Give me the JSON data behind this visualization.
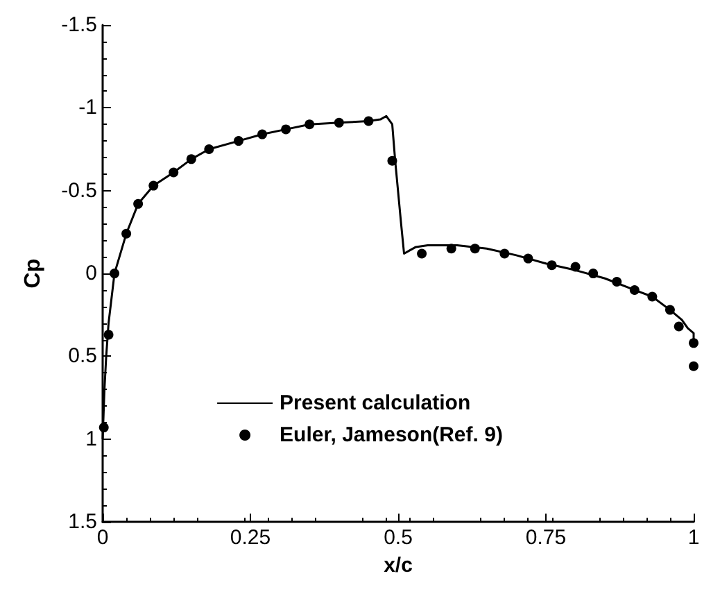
{
  "chart_data": {
    "type": "line",
    "xlabel": "x/c",
    "ylabel": "Cp",
    "xlim": [
      0,
      1
    ],
    "xticks": [
      0,
      0.25,
      0.5,
      0.75,
      1
    ],
    "ylim": [
      1.5,
      -1.5
    ],
    "yticks": [
      -1.5,
      -1,
      -0.5,
      0,
      0.5,
      1,
      1.5
    ],
    "grid": false,
    "legend": "bottom",
    "series": [
      {
        "name": "Present calculation",
        "marker": "none",
        "line_style": "solid",
        "color": "#000000",
        "x": [
          0,
          0.003,
          0.006,
          0.01,
          0.02,
          0.04,
          0.06,
          0.086,
          0.12,
          0.15,
          0.18,
          0.23,
          0.27,
          0.31,
          0.35,
          0.4,
          0.45,
          0.47,
          0.48,
          0.49,
          0.495,
          0.505,
          0.51,
          0.52,
          0.53,
          0.55,
          0.6,
          0.65,
          0.7,
          0.75,
          0.8,
          0.85,
          0.9,
          0.93,
          0.96,
          0.98,
          0.99,
          1.0,
          1.0
        ],
        "values": [
          1.0,
          0.7,
          0.5,
          0.3,
          0.0,
          -0.24,
          -0.42,
          -0.53,
          -0.61,
          -0.69,
          -0.75,
          -0.8,
          -0.84,
          -0.87,
          -0.9,
          -0.91,
          -0.92,
          -0.93,
          -0.95,
          -0.9,
          -0.68,
          -0.3,
          -0.12,
          -0.14,
          -0.16,
          -0.17,
          -0.17,
          -0.15,
          -0.11,
          -0.06,
          -0.02,
          0.03,
          0.1,
          0.14,
          0.22,
          0.28,
          0.33,
          0.36,
          0.42
        ]
      },
      {
        "name": "Euler, Jameson(Ref. 9)",
        "type": "scatter",
        "marker": "circle",
        "color": "#000000",
        "x": [
          0.002,
          0.01,
          0.02,
          0.04,
          0.06,
          0.086,
          0.12,
          0.15,
          0.18,
          0.23,
          0.27,
          0.31,
          0.35,
          0.4,
          0.45,
          0.49,
          0.54,
          0.59,
          0.63,
          0.68,
          0.72,
          0.76,
          0.8,
          0.83,
          0.87,
          0.9,
          0.93,
          0.96,
          0.975,
          1.0,
          1.0
        ],
        "values": [
          0.93,
          0.37,
          0.0,
          -0.24,
          -0.42,
          -0.53,
          -0.61,
          -0.69,
          -0.75,
          -0.8,
          -0.84,
          -0.87,
          -0.9,
          -0.91,
          -0.92,
          -0.68,
          -0.12,
          -0.15,
          -0.15,
          -0.12,
          -0.09,
          -0.05,
          -0.04,
          0.0,
          0.05,
          0.1,
          0.14,
          0.22,
          0.32,
          0.42,
          0.56
        ]
      }
    ]
  }
}
